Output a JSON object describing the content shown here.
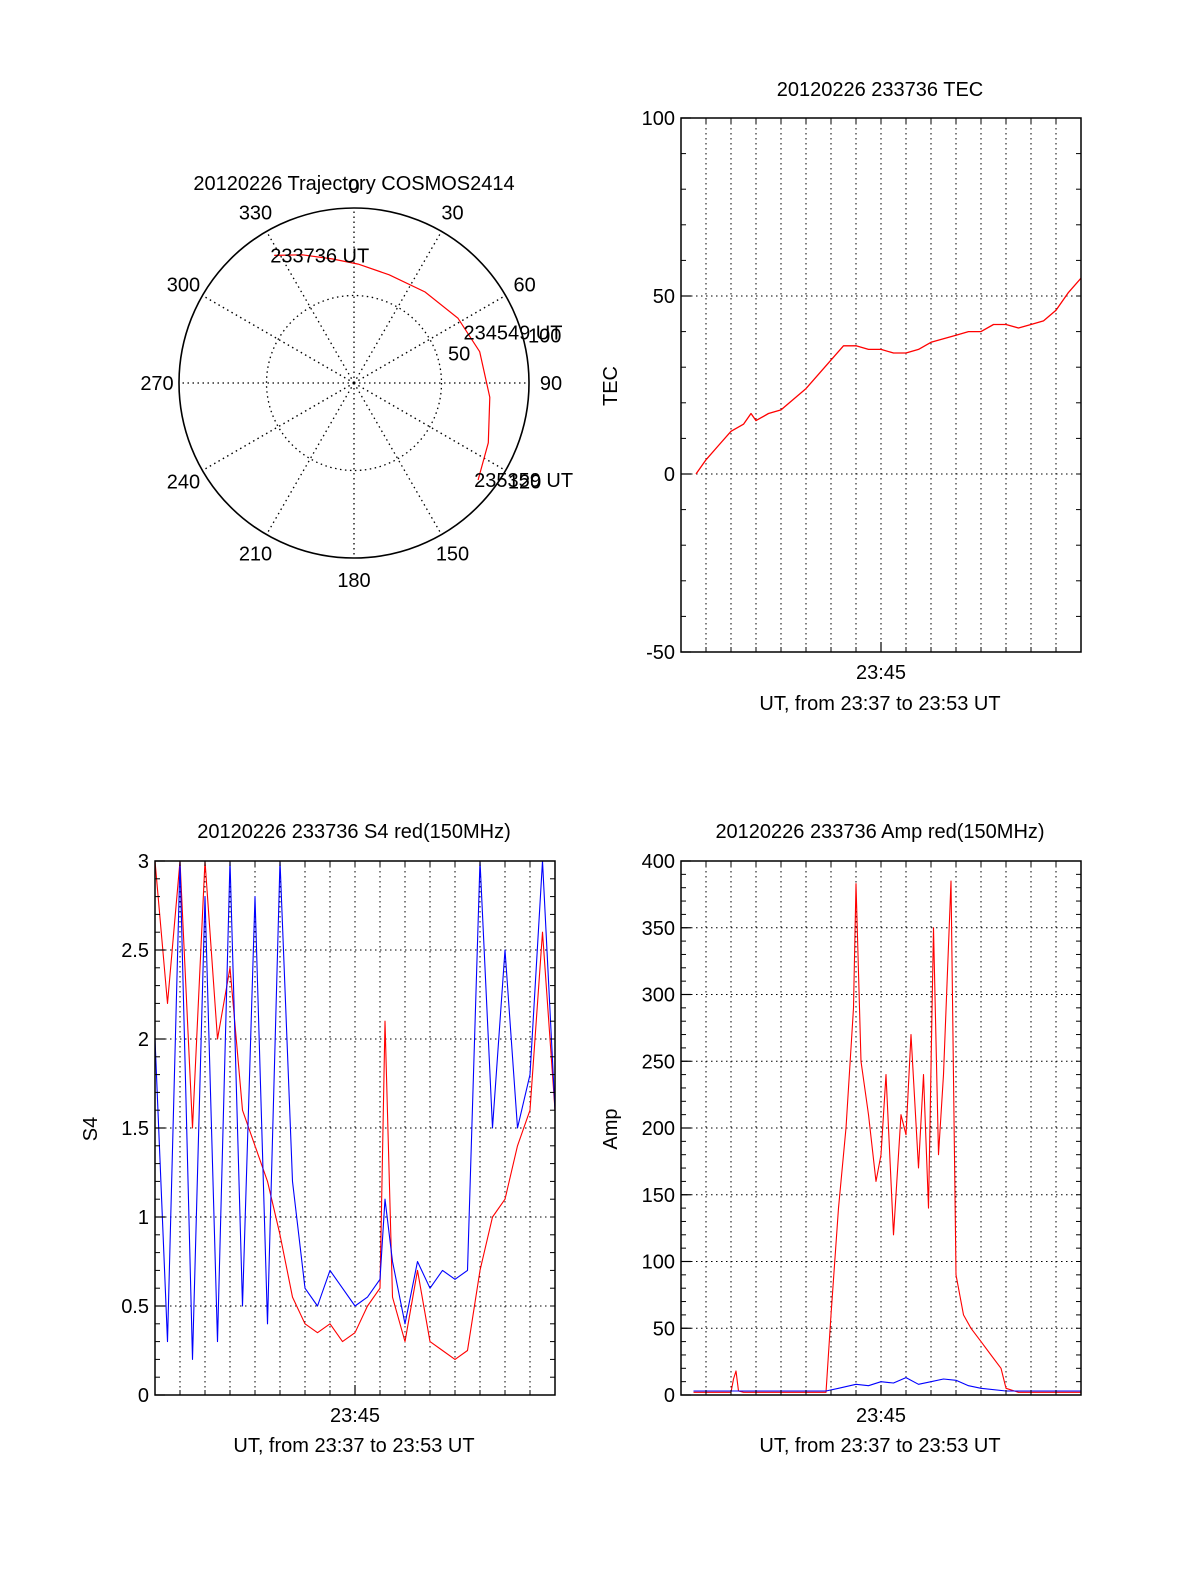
{
  "colors": {
    "red": "#ff0000",
    "blue": "#0000ff",
    "axis": "#000000",
    "grid": "#000000"
  },
  "chart_data": [
    {
      "type": "polar",
      "title": "20120226 Trajectory COSMOS2414",
      "azimuth_labels": [
        "0",
        "30",
        "60",
        "90",
        "120",
        "150",
        "180",
        "210",
        "240",
        "270",
        "300",
        "330"
      ],
      "radial_labels": [
        "50",
        "100"
      ],
      "radial_range": [
        0,
        100
      ],
      "series": [
        {
          "color": "#ff0000",
          "points": [
            {
              "az": 328,
              "zen": 86
            },
            {
              "az": 338,
              "zen": 79
            },
            {
              "az": 350,
              "zen": 72
            },
            {
              "az": 2,
              "zen": 68
            },
            {
              "az": 18,
              "zen": 65
            },
            {
              "az": 38,
              "zen": 66
            },
            {
              "az": 58,
              "zen": 70
            },
            {
              "az": 76,
              "zen": 74
            },
            {
              "az": 96,
              "zen": 78
            },
            {
              "az": 114,
              "zen": 84
            },
            {
              "az": 128,
              "zen": 90
            }
          ]
        }
      ],
      "annotations": [
        {
          "text": "233736 UT",
          "az": 328,
          "zen": 86
        },
        {
          "text": "234549 UT",
          "az": 66,
          "zen": 71
        },
        {
          "text": "235359 UT",
          "az": 128,
          "zen": 90
        }
      ]
    },
    {
      "type": "line",
      "title": "20120226 233736 TEC",
      "xlabel": "UT, from 23:37 to 23:53 UT",
      "ylabel": "TEC",
      "xlim": [
        0,
        16
      ],
      "ylim": [
        -50,
        100
      ],
      "xticks": [
        {
          "value": 8,
          "label": "23:45"
        }
      ],
      "yticks": [
        {
          "value": -50,
          "label": "-50"
        },
        {
          "value": 0,
          "label": "0"
        },
        {
          "value": 50,
          "label": "50"
        },
        {
          "value": 100,
          "label": "100"
        }
      ],
      "grid": true,
      "series": [
        {
          "color": "#ff0000",
          "x": [
            0.6,
            1,
            1.5,
            2,
            2.5,
            2.8,
            3,
            3.5,
            4,
            4.5,
            5,
            5.5,
            6,
            6.5,
            7,
            7.5,
            8,
            8.5,
            9,
            9.5,
            10,
            10.5,
            11,
            11.5,
            12,
            12.5,
            13,
            13.5,
            14,
            14.5,
            15,
            15.5,
            16
          ],
          "y": [
            0,
            4,
            8,
            12,
            14,
            17,
            15,
            17,
            18,
            21,
            24,
            28,
            32,
            36,
            36,
            35,
            35,
            34,
            34,
            35,
            37,
            38,
            39,
            40,
            40,
            42,
            42,
            41,
            42,
            43,
            46,
            51,
            55
          ]
        }
      ]
    },
    {
      "type": "line",
      "title": "20120226 233736 S4 red(150MHz)",
      "xlabel": "UT, from 23:37 to 23:53 UT",
      "ylabel": "S4",
      "xlim": [
        0,
        16
      ],
      "ylim": [
        0,
        3
      ],
      "xticks": [
        {
          "value": 8,
          "label": "23:45"
        }
      ],
      "yticks": [
        {
          "value": 0,
          "label": "0"
        },
        {
          "value": 0.5,
          "label": "0.5"
        },
        {
          "value": 1,
          "label": "1"
        },
        {
          "value": 1.5,
          "label": "1.5"
        },
        {
          "value": 2,
          "label": "2"
        },
        {
          "value": 2.5,
          "label": "2.5"
        },
        {
          "value": 3,
          "label": "3"
        }
      ],
      "grid": true,
      "series": [
        {
          "color": "#ff0000",
          "x": [
            0,
            0.5,
            1,
            1.5,
            2,
            2.5,
            3,
            3.5,
            4,
            4.5,
            5,
            5.5,
            6,
            6.5,
            7,
            7.5,
            8,
            8.5,
            9,
            9.2,
            9.5,
            10,
            10.5,
            11,
            11.5,
            12,
            12.5,
            13,
            13.5,
            14,
            14.5,
            15,
            15.5,
            16
          ],
          "y": [
            3,
            2.2,
            3,
            1.5,
            3,
            2,
            2.4,
            1.6,
            1.4,
            1.2,
            0.9,
            0.55,
            0.4,
            0.35,
            0.4,
            0.3,
            0.35,
            0.5,
            0.6,
            2.1,
            0.55,
            0.3,
            0.7,
            0.3,
            0.25,
            0.2,
            0.25,
            0.7,
            1.0,
            1.1,
            1.4,
            1.6,
            2.6,
            1.6
          ]
        },
        {
          "color": "#0000ff",
          "x": [
            0,
            0.5,
            1,
            1.5,
            2,
            2.5,
            3,
            3.5,
            4,
            4.5,
            5,
            5.5,
            6,
            6.5,
            7,
            7.5,
            8,
            8.5,
            9,
            9.2,
            9.5,
            10,
            10.5,
            11,
            11.5,
            12,
            12.5,
            13,
            13.5,
            14,
            14.5,
            15,
            15.5,
            16
          ],
          "y": [
            2.0,
            0.3,
            3,
            0.2,
            2.8,
            0.3,
            3,
            0.5,
            2.8,
            0.4,
            3,
            1.2,
            0.6,
            0.5,
            0.7,
            0.6,
            0.5,
            0.55,
            0.65,
            1.1,
            0.75,
            0.4,
            0.75,
            0.6,
            0.7,
            0.65,
            0.7,
            3,
            1.5,
            2.5,
            1.5,
            1.8,
            3,
            1.6
          ]
        }
      ]
    },
    {
      "type": "line",
      "title": "20120226 233736 Amp red(150MHz)",
      "xlabel": "UT, from 23:37 to 23:53 UT",
      "ylabel": "Amp",
      "xlim": [
        0,
        16
      ],
      "ylim": [
        0,
        400
      ],
      "xticks": [
        {
          "value": 8,
          "label": "23:45"
        }
      ],
      "yticks": [
        {
          "value": 0,
          "label": "0"
        },
        {
          "value": 50,
          "label": "50"
        },
        {
          "value": 100,
          "label": "100"
        },
        {
          "value": 150,
          "label": "150"
        },
        {
          "value": 200,
          "label": "200"
        },
        {
          "value": 250,
          "label": "250"
        },
        {
          "value": 300,
          "label": "300"
        },
        {
          "value": 350,
          "label": "350"
        },
        {
          "value": 400,
          "label": "400"
        }
      ],
      "grid": true,
      "series": [
        {
          "color": "#ff0000",
          "x": [
            0.5,
            1,
            1.5,
            2,
            2.1,
            2.2,
            2.3,
            2.5,
            3,
            4,
            5,
            5.8,
            6,
            6.3,
            6.6,
            6.9,
            7.0,
            7.2,
            7.5,
            7.8,
            8.0,
            8.2,
            8.5,
            8.8,
            9.0,
            9.2,
            9.5,
            9.7,
            9.9,
            10.1,
            10.3,
            10.5,
            10.8,
            11.0,
            11.3,
            11.6,
            12.0,
            12.4,
            12.8,
            13.0,
            13.5,
            14,
            15,
            16
          ],
          "y": [
            2,
            2,
            2,
            2,
            12,
            18,
            3,
            2,
            2,
            2,
            2,
            2,
            60,
            140,
            200,
            290,
            383,
            250,
            210,
            160,
            180,
            240,
            120,
            210,
            195,
            270,
            170,
            240,
            140,
            350,
            180,
            240,
            385,
            90,
            60,
            50,
            40,
            30,
            20,
            5,
            2,
            2,
            2,
            2
          ]
        },
        {
          "color": "#0000ff",
          "x": [
            0.5,
            2,
            4,
            5.8,
            6.3,
            7.0,
            7.5,
            8.0,
            8.5,
            9.0,
            9.5,
            10.0,
            10.5,
            11.0,
            11.5,
            12.0,
            13.0,
            14,
            16
          ],
          "y": [
            3,
            3,
            3,
            3,
            5,
            8,
            7,
            10,
            9,
            13,
            8,
            10,
            12,
            11,
            7,
            5,
            3,
            3,
            3
          ]
        }
      ]
    }
  ]
}
